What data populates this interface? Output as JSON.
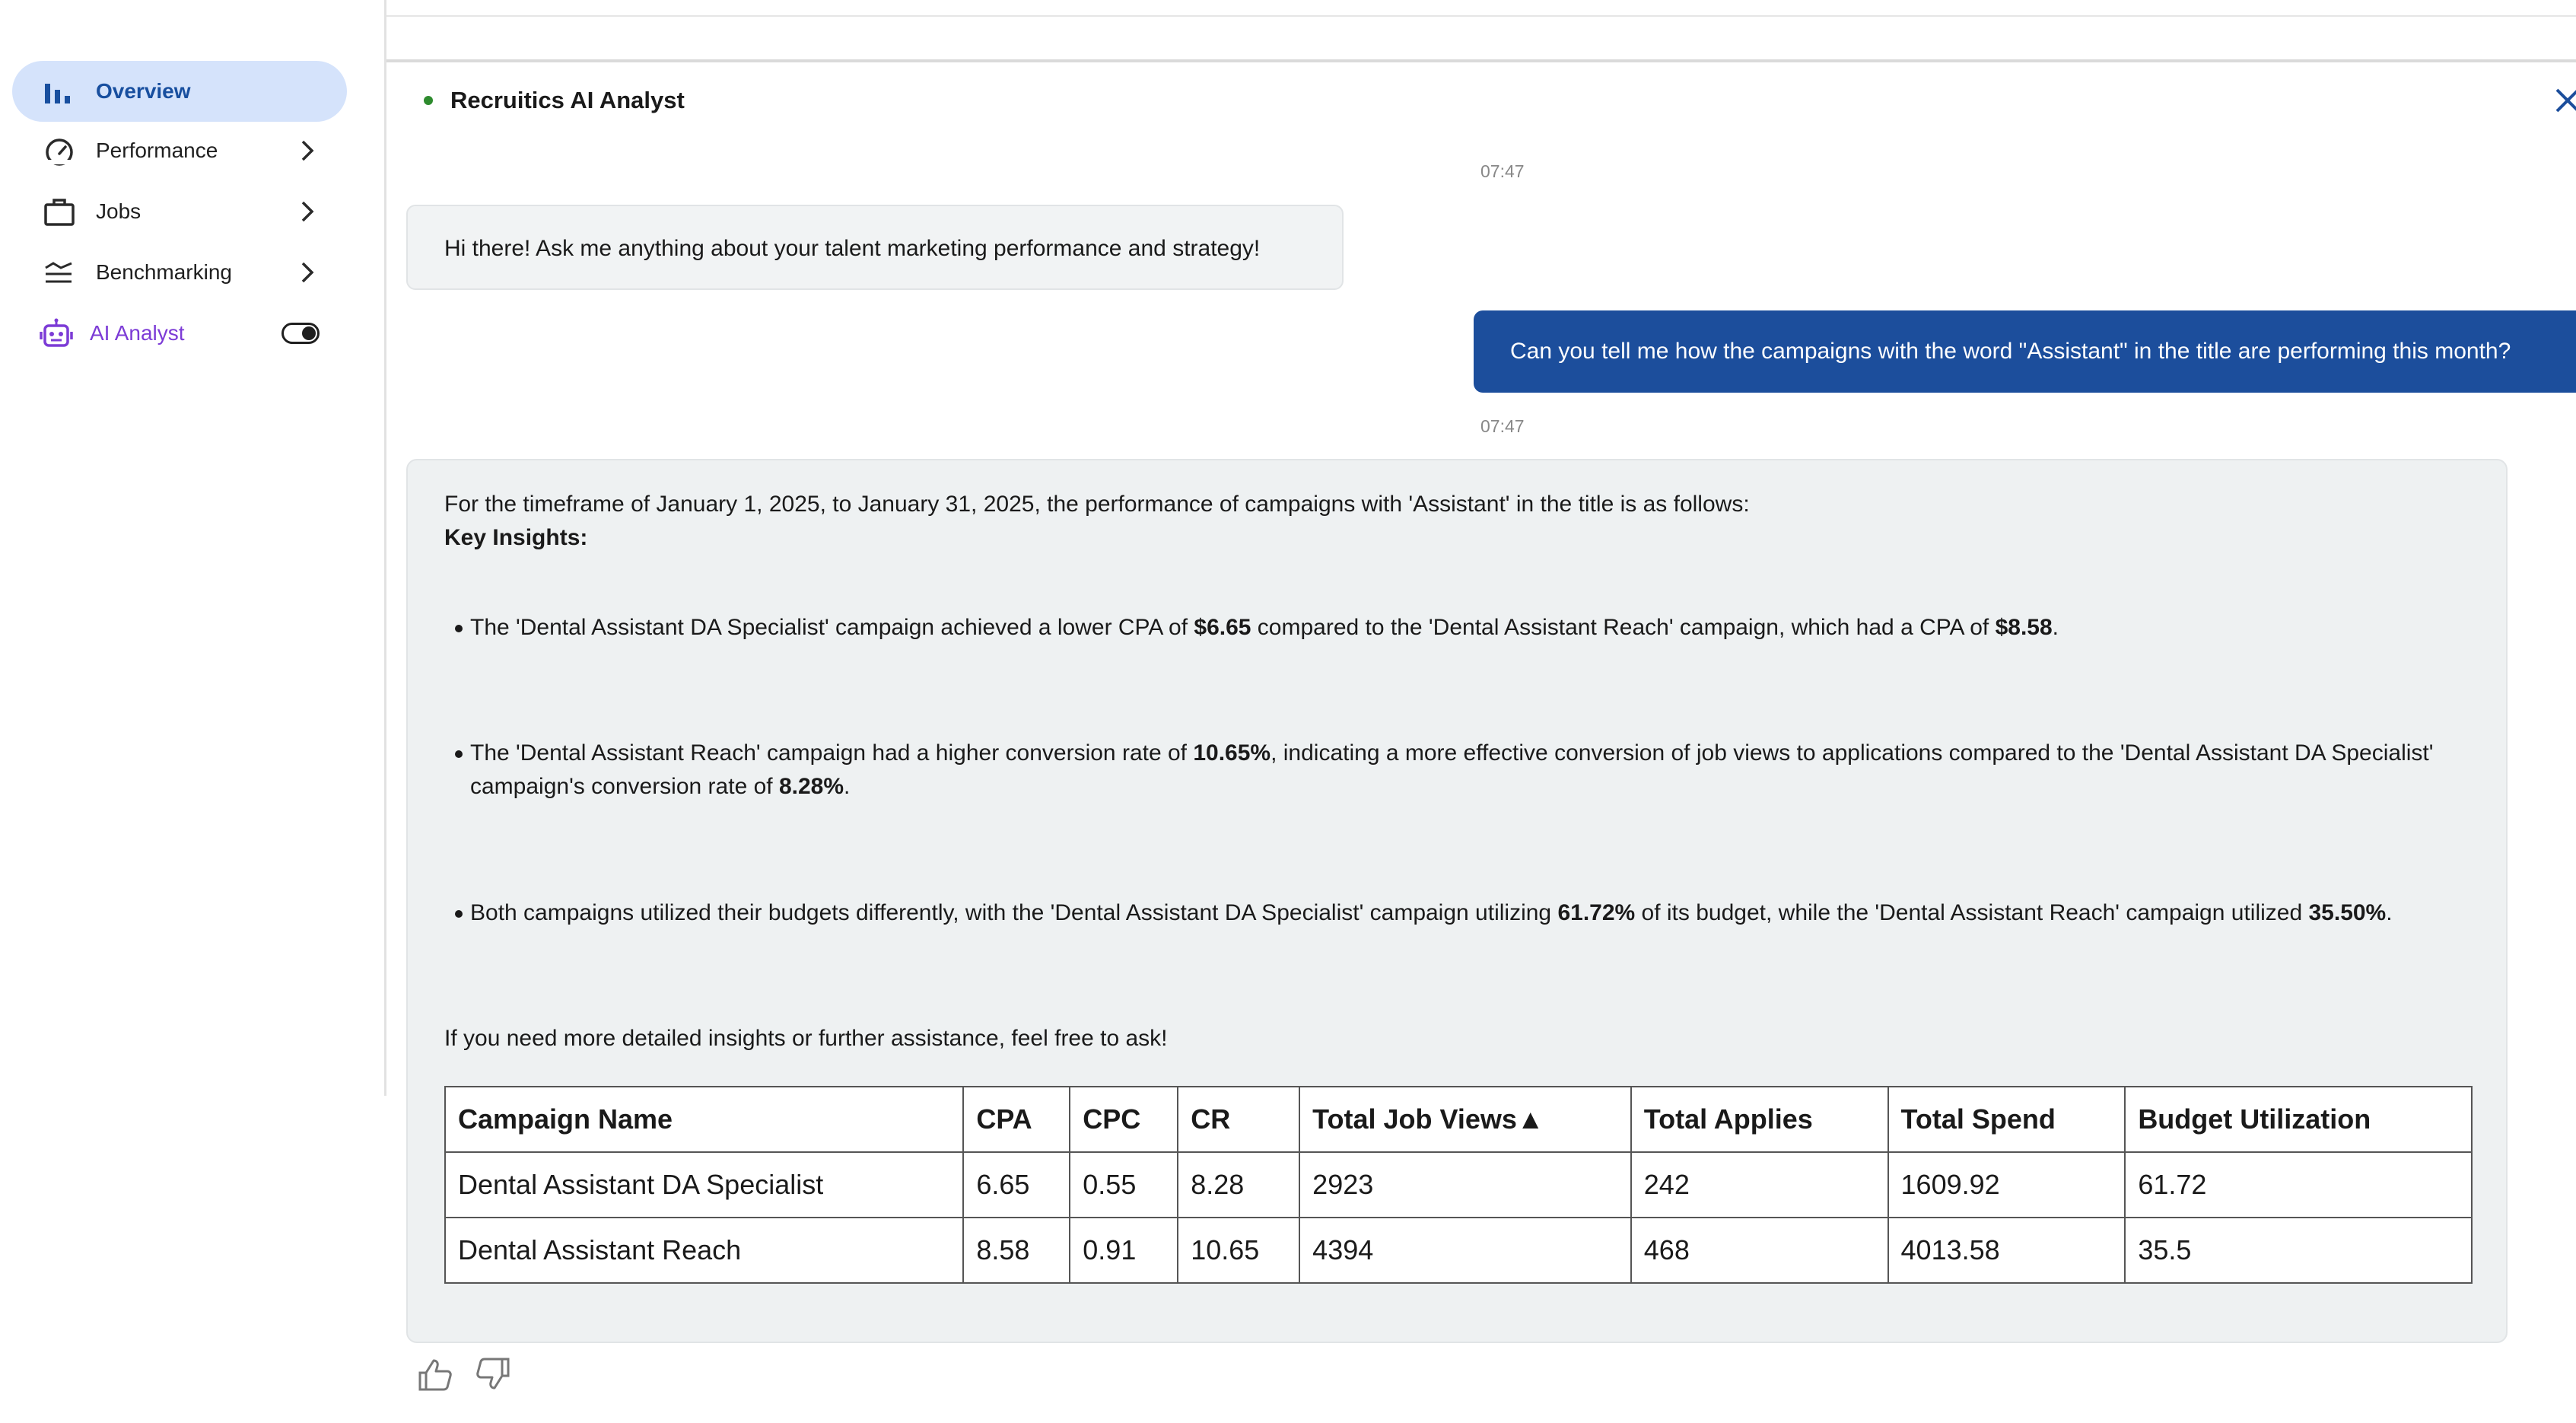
{
  "sidebar": {
    "items": [
      {
        "label": "Overview",
        "icon": "bar-chart-icon"
      },
      {
        "label": "Performance",
        "icon": "speedometer-icon"
      },
      {
        "label": "Jobs",
        "icon": "briefcase-icon"
      },
      {
        "label": "Benchmarking",
        "icon": "benchmark-icon"
      },
      {
        "label": "AI Analyst",
        "icon": "robot-icon"
      }
    ]
  },
  "chat": {
    "title": "Recruitics AI Analyst",
    "timestamps": [
      "07:47",
      "07:47"
    ],
    "greeting": "Hi there! Ask me anything about your talent marketing performance and strategy!",
    "user_question": "Can you tell me how the campaigns with the word \"Assistant\" in the title are performing this month?",
    "response": {
      "intro": "For the timeframe of January 1, 2025, to January 31, 2025, the performance of campaigns with 'Assistant' in the title is as follows:",
      "insights_heading": "Key Insights:",
      "bullets": [
        {
          "p1": "The 'Dental Assistant DA Specialist' campaign achieved a lower CPA of ",
          "b1": "$6.65",
          "p2": " compared to the 'Dental Assistant Reach' campaign, which had a CPA of ",
          "b2": "$8.58",
          "p3": "."
        },
        {
          "p1": "The 'Dental Assistant Reach' campaign had a higher conversion rate of ",
          "b1": "10.65%",
          "p2": ", indicating a more effective conversion of job views to applications compared to the 'Dental Assistant DA Specialist' campaign's conversion rate of ",
          "b2": "8.28%",
          "p3": "."
        },
        {
          "p1": "Both campaigns utilized their budgets differently, with the 'Dental Assistant DA Specialist' campaign utilizing ",
          "b1": "61.72%",
          "p2": " of its budget, while the 'Dental Assistant Reach' campaign utilized ",
          "b2": "35.50%",
          "p3": "."
        }
      ],
      "closing": "If you need more detailed insights or further assistance, feel free to ask!",
      "table": {
        "headers": [
          "Campaign Name",
          "CPA",
          "CPC",
          "CR",
          "Total Job Views▲",
          "Total Applies",
          "Total Spend",
          "Budget Utilization"
        ],
        "rows": [
          [
            "Dental Assistant DA Specialist",
            "6.65",
            "0.55",
            "8.28",
            "2923",
            "242",
            "1609.92",
            "61.72"
          ],
          [
            "Dental Assistant Reach",
            "8.58",
            "0.91",
            "10.65",
            "4394",
            "468",
            "4013.58",
            "35.5"
          ]
        ]
      }
    }
  }
}
